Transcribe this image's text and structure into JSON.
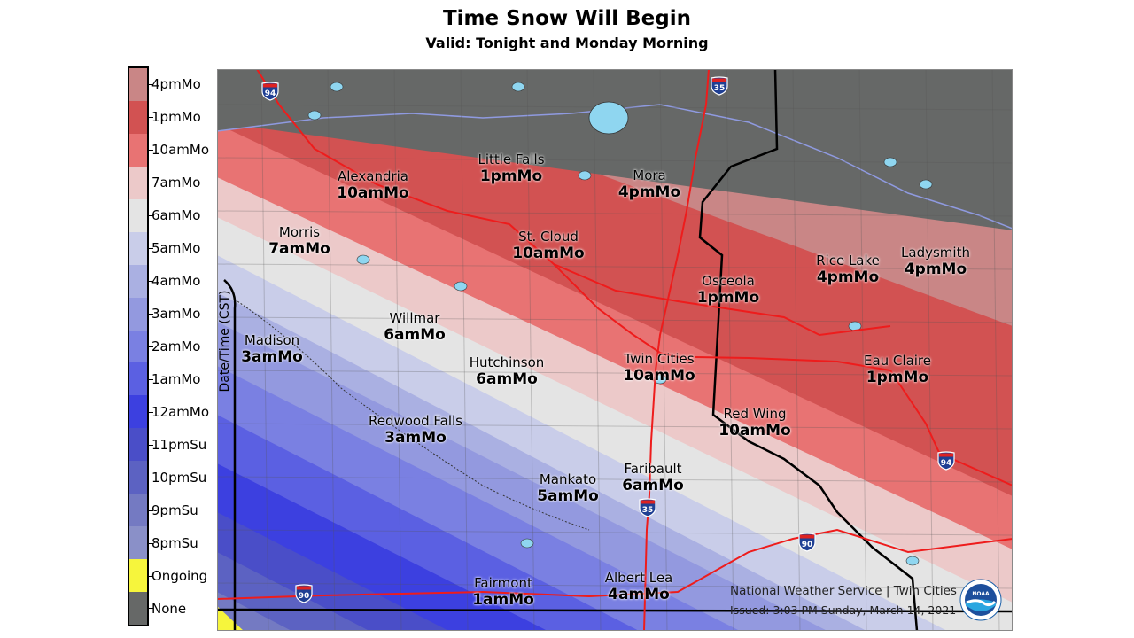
{
  "title": "Time Snow Will Begin",
  "subtitle": "Valid: Tonight and Monday Morning",
  "legend": {
    "axis_label": "Date/Time (CST)",
    "items": [
      {
        "label": "4pmMo",
        "color": "#c98686"
      },
      {
        "label": "1pmMo",
        "color": "#d25252"
      },
      {
        "label": "10amMo",
        "color": "#e87373"
      },
      {
        "label": "7amMo",
        "color": "#ecc9c9"
      },
      {
        "label": "6amMo",
        "color": "#e4e4e4"
      },
      {
        "label": "5amMo",
        "color": "#c9cde9"
      },
      {
        "label": "4amMo",
        "color": "#aab0e2"
      },
      {
        "label": "3amMo",
        "color": "#9399df"
      },
      {
        "label": "2amMo",
        "color": "#7a80e2"
      },
      {
        "label": "1amMo",
        "color": "#5b60e2"
      },
      {
        "label": "12amMo",
        "color": "#3c40e0"
      },
      {
        "label": "11pmSu",
        "color": "#4a4ec8"
      },
      {
        "label": "10pmSu",
        "color": "#5c62c2"
      },
      {
        "label": "9pmSu",
        "color": "#747ac2"
      },
      {
        "label": "8pmSu",
        "color": "#8a90c8"
      },
      {
        "label": "Ongoing",
        "color": "#f6f53c"
      },
      {
        "label": "None",
        "color": "#666867"
      }
    ]
  },
  "cities": [
    {
      "name": "Alexandria",
      "time": "10amMo"
    },
    {
      "name": "Little Falls",
      "time": "1pmMo"
    },
    {
      "name": "Mora",
      "time": "4pmMo"
    },
    {
      "name": "Morris",
      "time": "7amMo"
    },
    {
      "name": "St. Cloud",
      "time": "10amMo"
    },
    {
      "name": "Osceola",
      "time": "1pmMo"
    },
    {
      "name": "Rice Lake",
      "time": "4pmMo"
    },
    {
      "name": "Ladysmith",
      "time": "4pmMo"
    },
    {
      "name": "Madison",
      "time": "3amMo"
    },
    {
      "name": "Willmar",
      "time": "6amMo"
    },
    {
      "name": "Hutchinson",
      "time": "6amMo"
    },
    {
      "name": "Twin Cities",
      "time": "10amMo"
    },
    {
      "name": "Eau Claire",
      "time": "1pmMo"
    },
    {
      "name": "Red Wing",
      "time": "10amMo"
    },
    {
      "name": "Redwood Falls",
      "time": "3amMo"
    },
    {
      "name": "Faribault",
      "time": "6amMo"
    },
    {
      "name": "Mankato",
      "time": "5amMo"
    },
    {
      "name": "Fairmont",
      "time": "1amMo"
    },
    {
      "name": "Albert Lea",
      "time": "4amMo"
    }
  ],
  "interstates": [
    "94",
    "35",
    "94",
    "35",
    "90",
    "90"
  ],
  "colors": {
    "interstate": "#ee1c1c",
    "shield": "#1f3f93",
    "lake": "#8fd6f0",
    "border": "#000000"
  },
  "credit": "National Weather Service | Twin Cities",
  "issued": "Issued: 3:03 PM Sunday, March 14, 2021",
  "logo_text": "NOAA"
}
